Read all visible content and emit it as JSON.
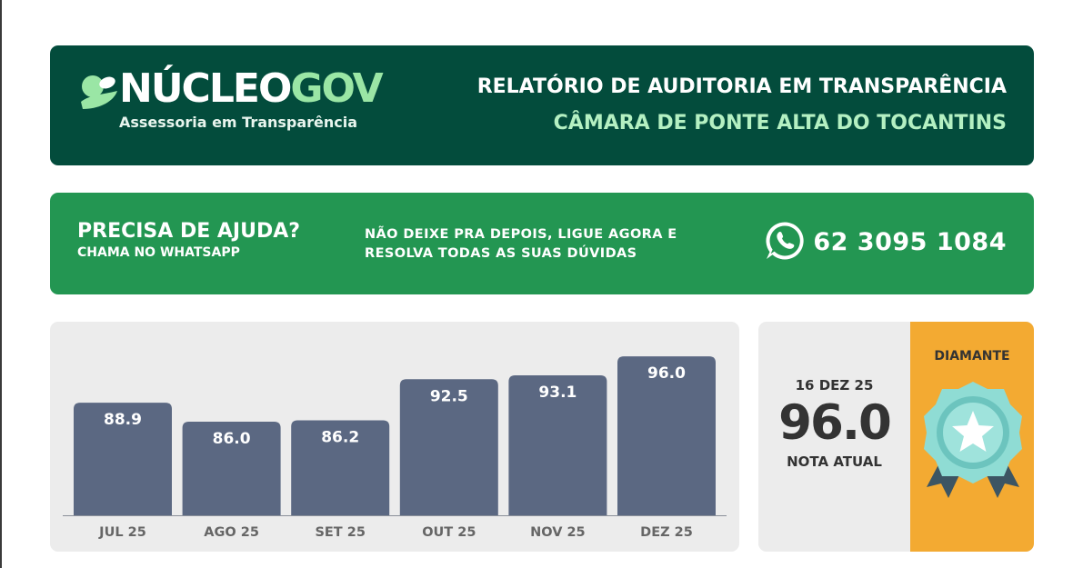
{
  "header": {
    "logo_word_part1": "NÚCLEO",
    "logo_word_part2": "GOV",
    "logo_subtitle": "Assessoria em Transparência",
    "title": "RELATÓRIO DE AUDITORIA EM TRANSPARÊNCIA",
    "subtitle": "CÂMARA DE PONTE ALTA DO TOCANTINS",
    "background_color": "#034c3c",
    "subtitle_color": "#b4f0c2"
  },
  "help_banner": {
    "title": "PRECISA DE AJUDA?",
    "subtitle": "CHAMA NO WHATSAPP",
    "message_line1": "NÃO DEIXE PRA DEPOIS, LIGUE AGORA E",
    "message_line2": "RESOLVA TODAS AS SUAS DÚVIDAS",
    "icon": "whatsapp-icon",
    "phone": "62 3095 1084",
    "background_color": "#239652"
  },
  "chart_data": {
    "type": "bar",
    "categories": [
      "JUL 25",
      "AGO 25",
      "SET 25",
      "OUT 25",
      "NOV 25",
      "DEZ 25"
    ],
    "values": [
      88.9,
      86.0,
      86.2,
      92.5,
      93.1,
      96.0
    ],
    "value_labels": [
      "88.9",
      "86.0",
      "86.2",
      "92.5",
      "93.1",
      "96.0"
    ],
    "ylim": [
      0,
      100
    ],
    "grid": false,
    "bar_color": "#5b6882",
    "background_color": "#ececec"
  },
  "score": {
    "date": "16 DEZ 25",
    "value": "96.0",
    "label": "NOTA ATUAL",
    "level": "DIAMANTE",
    "level_icon": "diamond-medal-icon",
    "level_color": "#f3aa32"
  }
}
